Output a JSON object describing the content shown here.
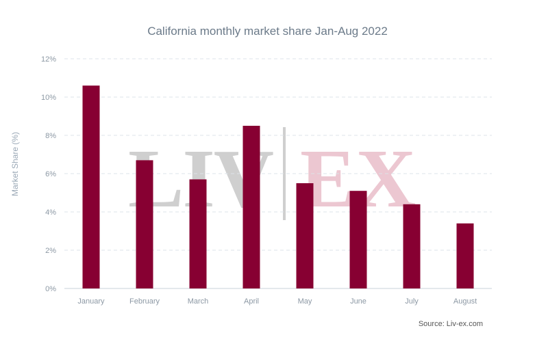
{
  "title": "California monthly market share Jan-Aug 2022",
  "ylabel": "Market Share (%)",
  "source": "Source: Liv-ex.com",
  "watermark": {
    "left": "LIV",
    "right": "EX"
  },
  "colors": {
    "bar": "#870032",
    "grid": "#dde3e8",
    "watermark_left": "#cfcfcf",
    "watermark_right": "#ecc7d1"
  },
  "chart_data": {
    "type": "bar",
    "title": "California monthly market share Jan-Aug 2022",
    "xlabel": "",
    "ylabel": "Market Share (%)",
    "categories": [
      "January",
      "February",
      "March",
      "April",
      "May",
      "June",
      "July",
      "August"
    ],
    "values": [
      10.6,
      6.7,
      5.7,
      8.5,
      5.5,
      5.1,
      4.4,
      3.4
    ],
    "ylim": [
      0,
      12
    ],
    "yticks": [
      0,
      2,
      4,
      6,
      8,
      10,
      12
    ],
    "ytick_labels": [
      "0%",
      "2%",
      "4%",
      "6%",
      "8%",
      "10%",
      "12%"
    ],
    "grid": true,
    "legend": "none"
  }
}
